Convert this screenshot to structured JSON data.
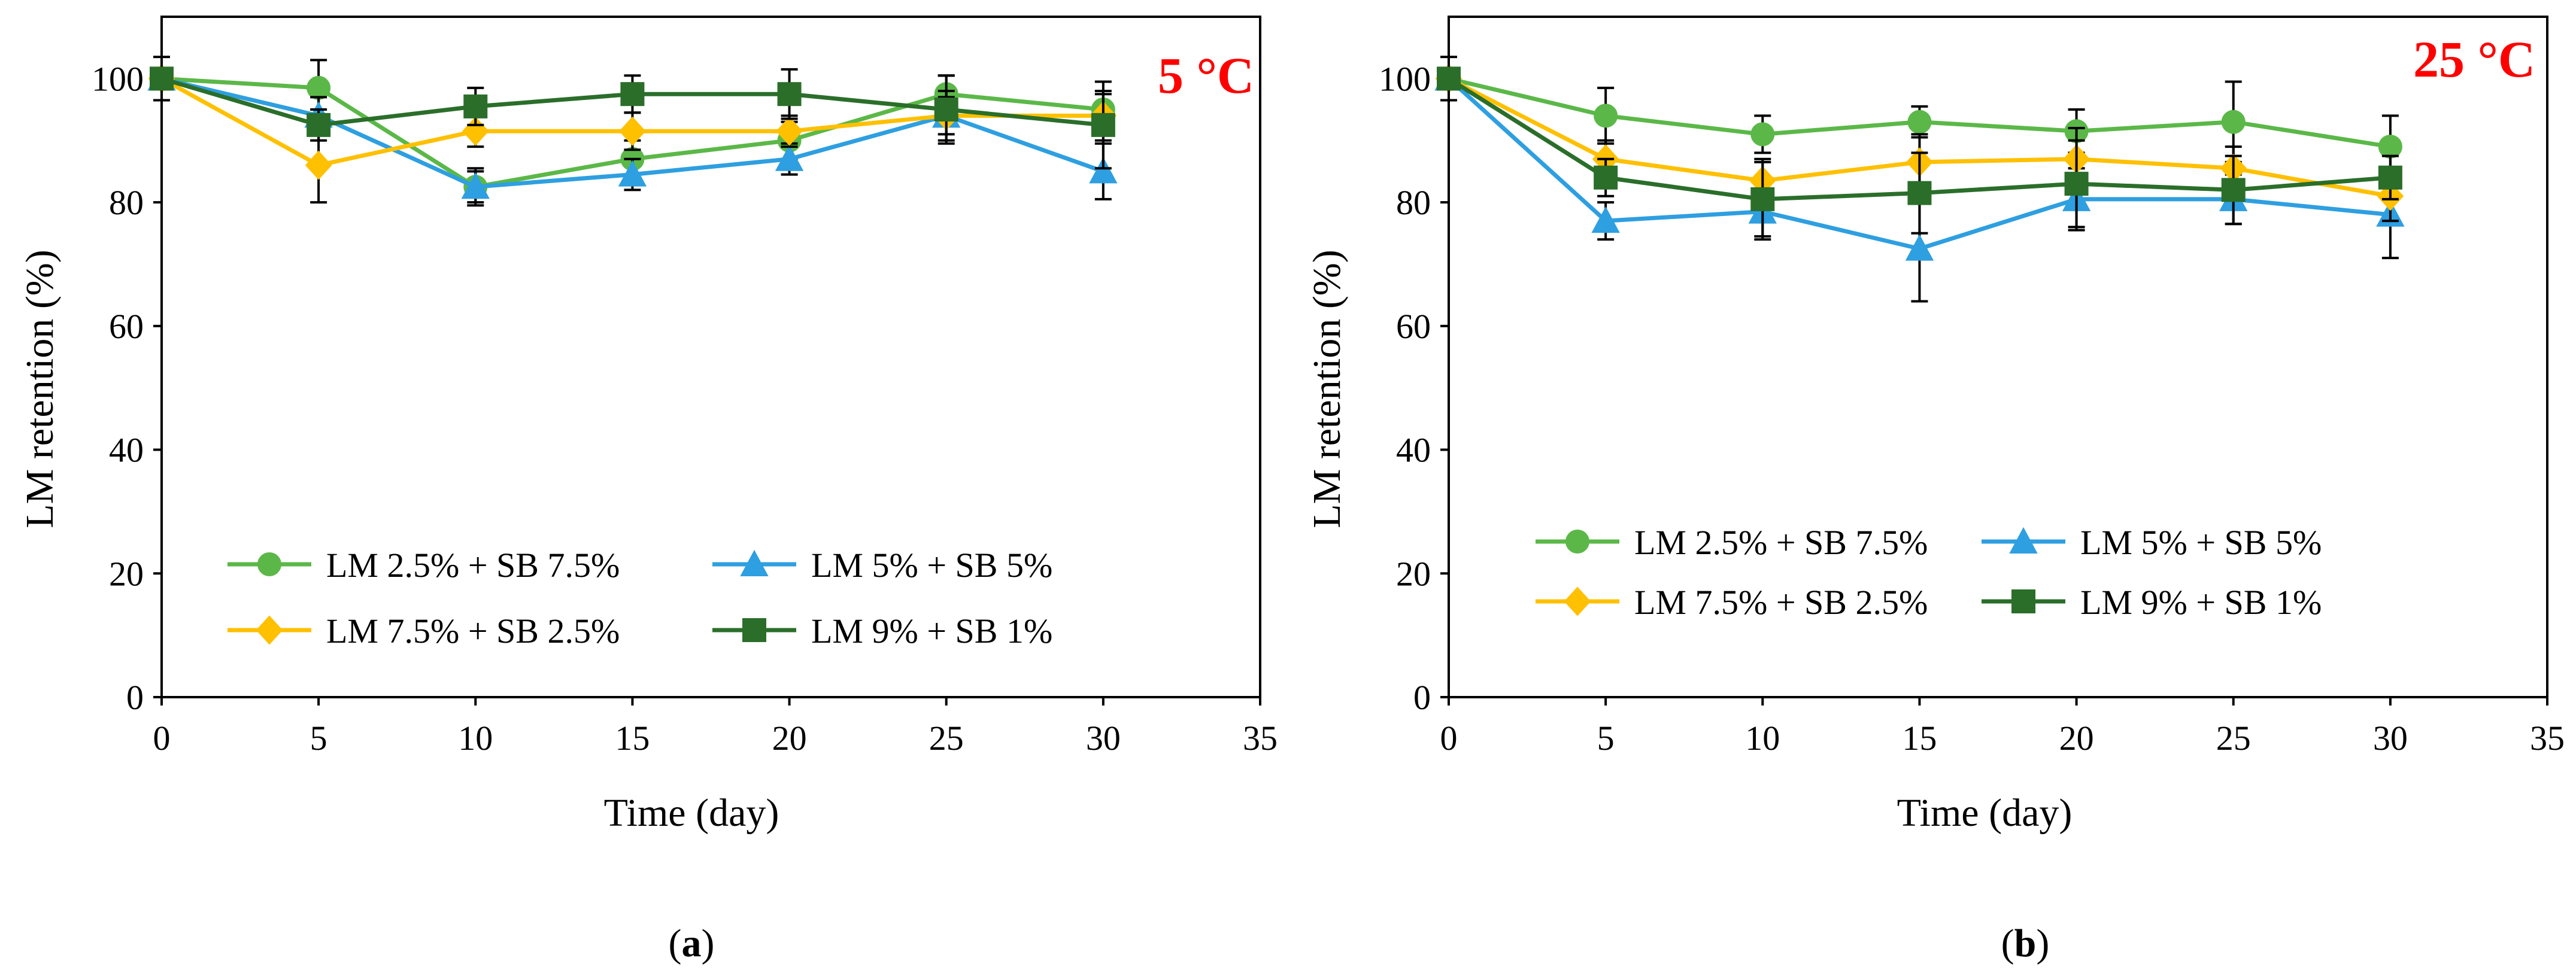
{
  "chart_data": [
    {
      "type": "line",
      "panel_label": "a",
      "temperature_label": "5 °C",
      "xlabel": "Time (day)",
      "ylabel": "LM retention (%)",
      "xlim": [
        0,
        35
      ],
      "ylim": [
        0,
        110
      ],
      "xticks": [
        0,
        5,
        10,
        15,
        20,
        25,
        30,
        35
      ],
      "yticks": [
        0,
        20,
        40,
        60,
        80,
        100
      ],
      "x": [
        0,
        5,
        10,
        15,
        20,
        25,
        30
      ],
      "grid": false,
      "legend_position": "bottom-center",
      "series": [
        {
          "name": "LM 2.5% + SB 7.5%",
          "color": "#5bb848",
          "marker": "circle",
          "values": [
            100,
            98.5,
            82.5,
            87,
            90,
            97.5,
            95
          ],
          "errors": [
            1.5,
            4.5,
            2.5,
            3,
            3,
            3,
            2.5
          ]
        },
        {
          "name": "LM 5% + SB 5%",
          "color": "#2e9fe0",
          "marker": "triangle",
          "values": [
            100,
            94,
            82.5,
            84.5,
            87,
            94,
            85
          ],
          "errors": [
            1.5,
            3,
            3,
            2.5,
            2.5,
            3,
            4.5
          ]
        },
        {
          "name": "LM 7.5% + SB 2.5%",
          "color": "#ffc000",
          "marker": "diamond",
          "values": [
            100,
            86,
            91.5,
            91.5,
            91.5,
            94,
            94
          ],
          "errors": [
            1.5,
            6,
            2.5,
            3,
            2.5,
            4,
            4
          ]
        },
        {
          "name": "LM 9% + SB 1%",
          "color": "#2a6e2a",
          "marker": "square",
          "values": [
            100,
            92.5,
            95.5,
            97.5,
            97.5,
            95,
            92.5
          ],
          "errors": [
            3.5,
            2.5,
            3,
            3,
            4,
            5.5,
            7
          ]
        }
      ]
    },
    {
      "type": "line",
      "panel_label": "b",
      "temperature_label": "25 °C",
      "xlabel": "Time (day)",
      "ylabel": "LM retention (%)",
      "xlim": [
        0,
        35
      ],
      "ylim": [
        0,
        110
      ],
      "xticks": [
        0,
        5,
        10,
        15,
        20,
        25,
        30,
        35
      ],
      "yticks": [
        0,
        20,
        40,
        60,
        80,
        100
      ],
      "x": [
        0,
        5,
        10,
        15,
        20,
        25,
        30
      ],
      "grid": false,
      "legend_position": "bottom-center",
      "series": [
        {
          "name": "LM 2.5% + SB 7.5%",
          "color": "#5bb848",
          "marker": "circle",
          "values": [
            100,
            94,
            91,
            93,
            91.5,
            93,
            89
          ],
          "errors": [
            1.5,
            4.5,
            3,
            2.5,
            3.5,
            6.5,
            5
          ]
        },
        {
          "name": "LM 5% + SB 5%",
          "color": "#2e9fe0",
          "marker": "triangle",
          "values": [
            100,
            77,
            78.5,
            72.5,
            80.5,
            80.5,
            78
          ],
          "errors": [
            1.5,
            3,
            4.5,
            8.5,
            5,
            4,
            7
          ]
        },
        {
          "name": "LM 7.5% + SB 2.5%",
          "color": "#ffc000",
          "marker": "diamond",
          "values": [
            100,
            87,
            83.5,
            86.5,
            87,
            85.5,
            81
          ],
          "errors": [
            1.5,
            3,
            3.5,
            4.5,
            5,
            3.5,
            4
          ]
        },
        {
          "name": "LM 9% + SB 1%",
          "color": "#2a6e2a",
          "marker": "square",
          "values": [
            100,
            84,
            80.5,
            81.5,
            83,
            82,
            84
          ],
          "errors": [
            3.5,
            3,
            6,
            6.5,
            7,
            5.5,
            3.5
          ]
        }
      ]
    }
  ]
}
